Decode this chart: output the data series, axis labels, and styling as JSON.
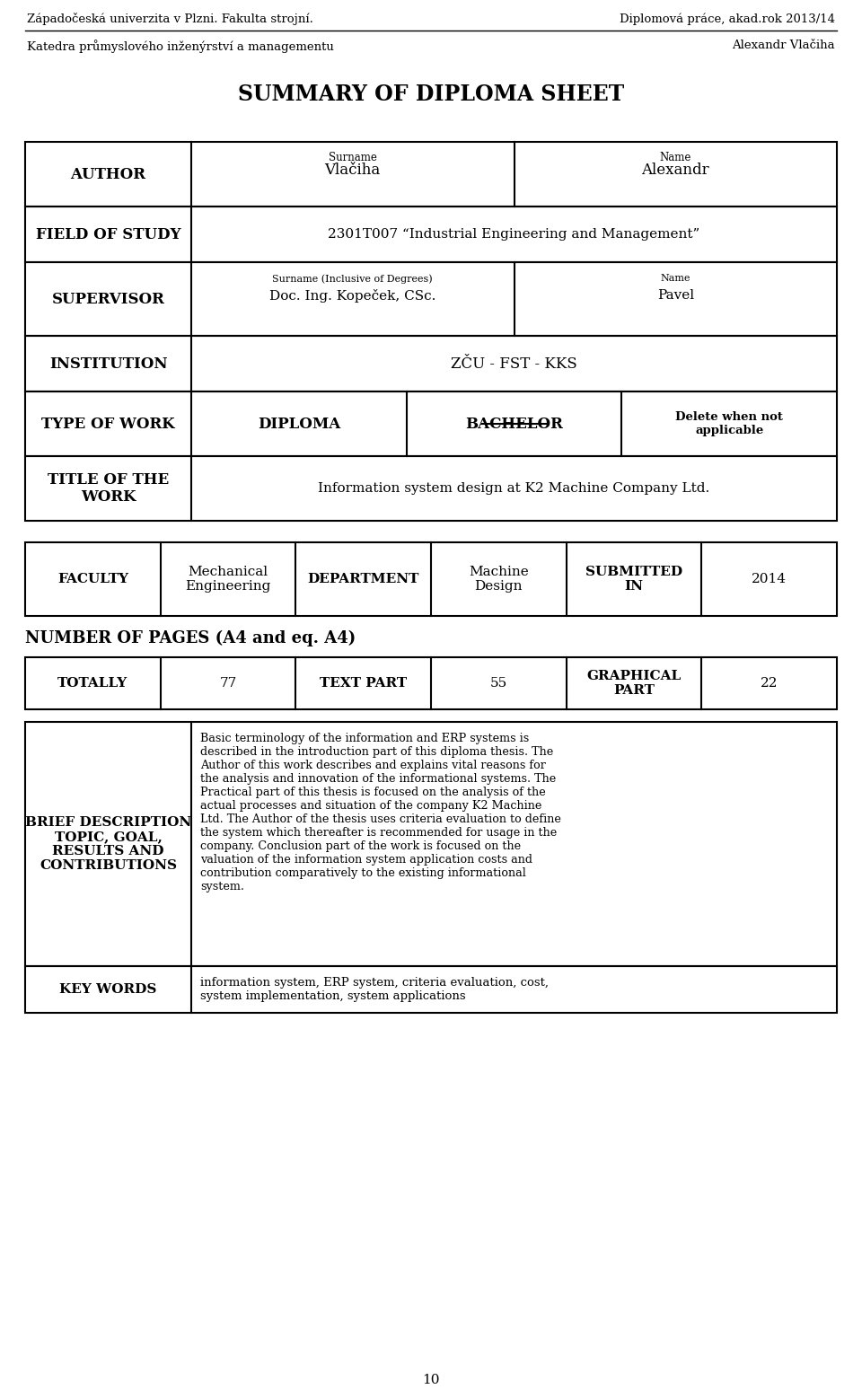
{
  "header_left1": "Západočeská univerzita v Plzni. Fakulta strojní.",
  "header_right1": "Diplomová práce, akad.rok 2013/14",
  "header_left2": "Katedra průmyslového inženýrství a managementu",
  "header_right2": "Alexandr Vlačiha",
  "main_title": "SUMMARY OF DIPLOMA SHEET",
  "author_label": "AUTHOR",
  "author_surname_label": "Surname",
  "author_surname": "Vlačiha",
  "author_name_label": "Name",
  "author_name": "Alexandr",
  "field_label": "FIELD OF STUDY",
  "field_value": "2301T007 “Industrial Engineering and Management”",
  "supervisor_label": "SUPERVISOR",
  "supervisor_surname_label": "Surname (Inclusive of Degrees)",
  "supervisor_surname": "Doc. Ing. Kopeček, CSc.",
  "supervisor_name_label": "Name",
  "supervisor_name": "Pavel",
  "institution_label": "INSTITUTION",
  "institution_value": "ZČU - FST - KKS",
  "type_label": "TYPE OF WORK",
  "type_diploma": "DIPLOMA",
  "type_bachelor": "BACHELOR",
  "type_delete": "Delete when not\napplicable",
  "title_label": "TITLE OF THE\nWORK",
  "title_value": "Information system design at K2 Machine Company Ltd.",
  "faculty_label": "FACULTY",
  "faculty_value": "Mechanical\nEngineering",
  "dept_label": "DEPARTMENT",
  "dept_value": "Machine\nDesign",
  "submitted_label": "SUBMITTED\nIN",
  "submitted_value": "2014",
  "pages_label": "NUMBER OF PAGES (A4 and eq. A4)",
  "totally_label": "TOTALLY",
  "totally_value": "77",
  "text_part_label": "TEXT PART",
  "text_part_value": "55",
  "graphical_label": "GRAPHICAL\nPART",
  "graphical_value": "22",
  "brief_label": "BRIEF DESCRIPTION\nTOPIC, GOAL,\nRESULTS AND\nCONTRIBUTIONS",
  "brief_value": "Basic terminology of the information and ERP systems is\ndescribed in the introduction part of this diploma thesis. The\nAuthor of this work describes and explains vital reasons for\nthe analysis and innovation of the informational systems. The\nPractical part of this thesis is focused on the analysis of the\nactual processes and situation of the company K2 Machine\nLtd. The Author of the thesis uses criteria evaluation to define\nthe system which thereafter is recommended for usage in the\ncompany. Conclusion part of the work is focused on the\nvaluation of the information system application costs and\ncontribution comparatively to the existing informational\nsystem.",
  "keywords_label": "KEY WORDS",
  "keywords_value": "information system, ERP system, criteria evaluation, cost,\nsystem implementation, system applications",
  "page_number": "10",
  "bg_color": "#ffffff",
  "text_color": "#000000",
  "line_color": "#000000"
}
